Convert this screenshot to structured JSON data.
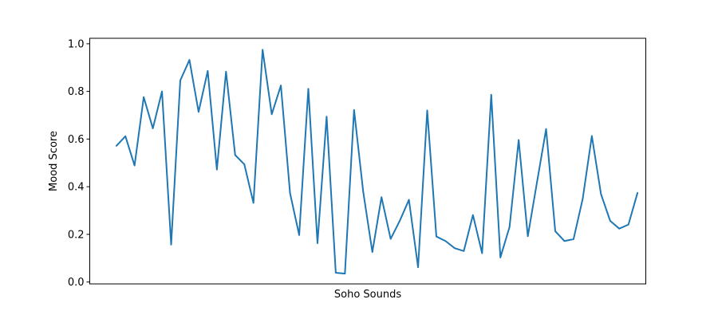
{
  "chart_data": {
    "type": "line",
    "title": "",
    "xlabel": "Soho Sounds",
    "ylabel": "Mood Score",
    "ylim": [
      -0.008,
      1.023
    ],
    "xlim": [
      -2.9,
      57.9
    ],
    "x_ticks_shown": false,
    "y_ticks": [
      0.0,
      0.2,
      0.4,
      0.6,
      0.8,
      1.0
    ],
    "y_tick_labels": [
      "0.0",
      "0.2",
      "0.4",
      "0.6",
      "0.8",
      "1.0"
    ],
    "grid": false,
    "legend": "none",
    "series": [
      {
        "color": "#1f77b4",
        "values": [
          0.571,
          0.612,
          0.489,
          0.776,
          0.645,
          0.8,
          0.157,
          0.846,
          0.932,
          0.714,
          0.886,
          0.472,
          0.883,
          0.533,
          0.494,
          0.332,
          0.975,
          0.704,
          0.825,
          0.373,
          0.197,
          0.811,
          0.163,
          0.694,
          0.039,
          0.035,
          0.722,
          0.379,
          0.126,
          0.356,
          0.181,
          0.257,
          0.345,
          0.062,
          0.72,
          0.191,
          0.172,
          0.142,
          0.13,
          0.281,
          0.121,
          0.786,
          0.103,
          0.231,
          0.596,
          0.192,
          0.418,
          0.642,
          0.213,
          0.172,
          0.18,
          0.349,
          0.613,
          0.369,
          0.257,
          0.224,
          0.241,
          0.375
        ]
      }
    ]
  }
}
